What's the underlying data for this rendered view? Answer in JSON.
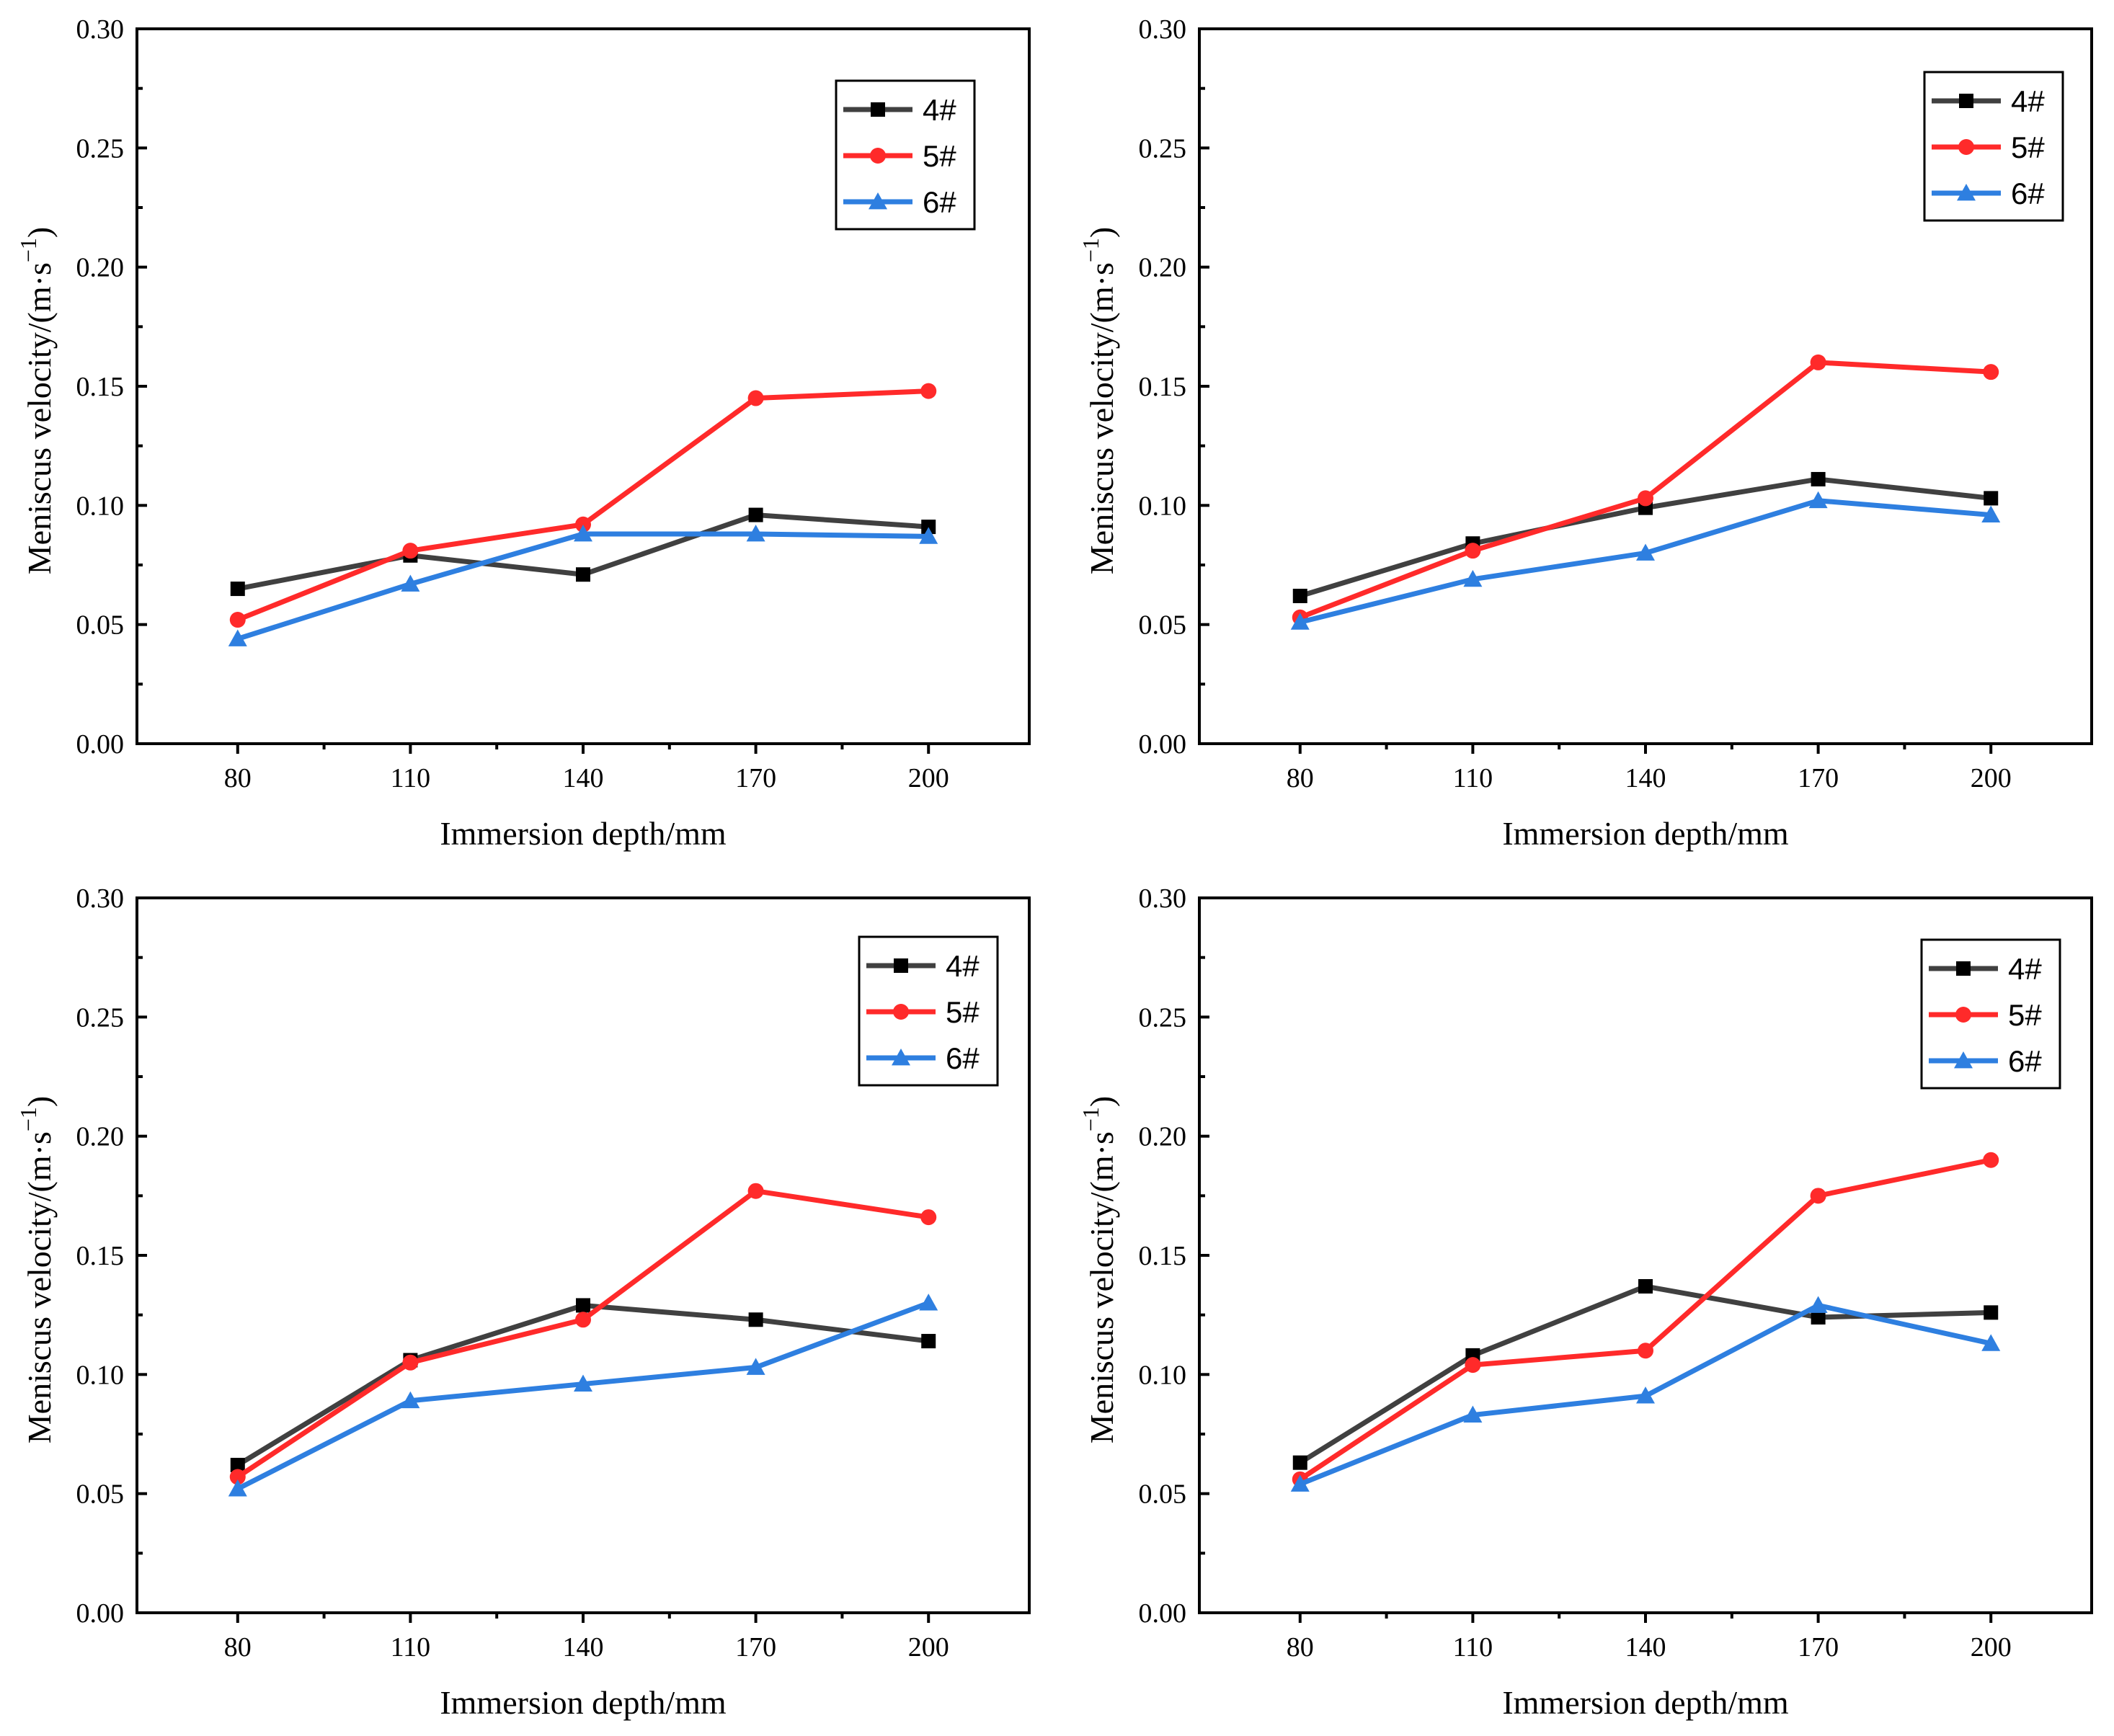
{
  "chart_data": [
    {
      "type": "line",
      "x": [
        80,
        110,
        140,
        170,
        200
      ],
      "xlabel": "Immersion depth/mm",
      "ylabel": "Meniscus velocity/(m·s",
      "ylabel_sup": "−1",
      "ylabel_close": ")",
      "ylim": [
        0,
        0.3
      ],
      "yticks": [
        "0.00",
        "0.05",
        "0.10",
        "0.15",
        "0.20",
        "0.25",
        "0.30"
      ],
      "xticks": [
        "80",
        "110",
        "140",
        "170",
        "200"
      ],
      "legend_position": "top-right",
      "series": [
        {
          "name": "4#",
          "color": "#404040",
          "marker": "square",
          "values": [
            0.065,
            0.079,
            0.071,
            0.096,
            0.091
          ]
        },
        {
          "name": "5#",
          "color": "#ff2a2a",
          "marker": "circle",
          "values": [
            0.052,
            0.081,
            0.092,
            0.145,
            0.148
          ]
        },
        {
          "name": "6#",
          "color": "#2e7fe0",
          "marker": "triangle",
          "values": [
            0.044,
            0.067,
            0.088,
            0.088,
            0.087
          ]
        }
      ]
    },
    {
      "type": "line",
      "x": [
        80,
        110,
        140,
        170,
        200
      ],
      "xlabel": "Immersion depth/mm",
      "ylabel": "Meniscus velocity/(m·s",
      "ylabel_sup": "−1",
      "ylabel_close": ")",
      "ylim": [
        0,
        0.3
      ],
      "yticks": [
        "0.00",
        "0.05",
        "0.10",
        "0.15",
        "0.20",
        "0.25",
        "0.30"
      ],
      "xticks": [
        "80",
        "110",
        "140",
        "170",
        "200"
      ],
      "legend_position": "top-right",
      "series": [
        {
          "name": "4#",
          "color": "#404040",
          "marker": "square",
          "values": [
            0.062,
            0.084,
            0.099,
            0.111,
            0.103
          ]
        },
        {
          "name": "5#",
          "color": "#ff2a2a",
          "marker": "circle",
          "values": [
            0.053,
            0.081,
            0.103,
            0.16,
            0.156
          ]
        },
        {
          "name": "6#",
          "color": "#2e7fe0",
          "marker": "triangle",
          "values": [
            0.051,
            0.069,
            0.08,
            0.102,
            0.096
          ]
        }
      ]
    },
    {
      "type": "line",
      "x": [
        80,
        110,
        140,
        170,
        200
      ],
      "xlabel": "Immersion depth/mm",
      "ylabel": "Meniscus velocity/(m·s",
      "ylabel_sup": "−1",
      "ylabel_close": ")",
      "ylim": [
        0,
        0.3
      ],
      "yticks": [
        "0.00",
        "0.05",
        "0.10",
        "0.15",
        "0.20",
        "0.25",
        "0.30"
      ],
      "xticks": [
        "80",
        "110",
        "140",
        "170",
        "200"
      ],
      "legend_position": "top-right",
      "series": [
        {
          "name": "4#",
          "color": "#404040",
          "marker": "square",
          "values": [
            0.062,
            0.106,
            0.129,
            0.123,
            0.114
          ]
        },
        {
          "name": "5#",
          "color": "#ff2a2a",
          "marker": "circle",
          "values": [
            0.057,
            0.105,
            0.123,
            0.177,
            0.166
          ]
        },
        {
          "name": "6#",
          "color": "#2e7fe0",
          "marker": "triangle",
          "values": [
            0.052,
            0.089,
            0.096,
            0.103,
            0.13
          ]
        }
      ]
    },
    {
      "type": "line",
      "x": [
        80,
        110,
        140,
        170,
        200
      ],
      "xlabel": "Immersion depth/mm",
      "ylabel": "Meniscus velocity/(m·s",
      "ylabel_sup": "−1",
      "ylabel_close": ")",
      "ylim": [
        0,
        0.3
      ],
      "yticks": [
        "0.00",
        "0.05",
        "0.10",
        "0.15",
        "0.20",
        "0.25",
        "0.30"
      ],
      "xticks": [
        "80",
        "110",
        "140",
        "170",
        "200"
      ],
      "legend_position": "top-right",
      "series": [
        {
          "name": "4#",
          "color": "#404040",
          "marker": "square",
          "values": [
            0.063,
            0.108,
            0.137,
            0.124,
            0.126
          ]
        },
        {
          "name": "5#",
          "color": "#ff2a2a",
          "marker": "circle",
          "values": [
            0.056,
            0.104,
            0.11,
            0.175,
            0.19
          ]
        },
        {
          "name": "6#",
          "color": "#2e7fe0",
          "marker": "triangle",
          "values": [
            0.054,
            0.083,
            0.091,
            0.129,
            0.113
          ]
        }
      ]
    }
  ]
}
